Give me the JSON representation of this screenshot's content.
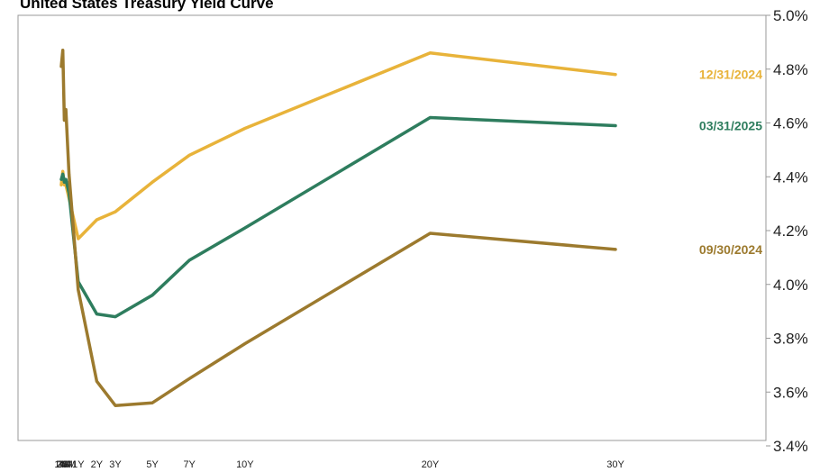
{
  "chart_data": {
    "type": "line",
    "title": "United States Treasury Yield Curve",
    "xlabel": "",
    "ylabel": "",
    "x": [
      "1M",
      "2M",
      "3M",
      "4M",
      "6M",
      "1Y",
      "2Y",
      "3Y",
      "5Y",
      "7Y",
      "10Y",
      "20Y",
      "30Y"
    ],
    "x_positions_months": [
      1,
      2,
      3,
      4,
      6,
      12,
      24,
      36,
      60,
      84,
      120,
      240,
      360
    ],
    "ylim": [
      3.4,
      5.0
    ],
    "yticks": [
      "5.0%",
      "4.8%",
      "4.6%",
      "4.4%",
      "4.2%",
      "4.0%",
      "3.8%",
      "3.6%",
      "3.4%"
    ],
    "ytick_values": [
      5.0,
      4.8,
      4.6,
      4.4,
      4.2,
      4.0,
      3.8,
      3.6,
      3.4
    ],
    "grid": false,
    "series": [
      {
        "name": "12/31/2024",
        "color": "#E8B33A",
        "values": [
          4.37,
          4.42,
          4.37,
          4.37,
          4.32,
          4.17,
          4.24,
          4.27,
          4.38,
          4.48,
          4.58,
          4.86,
          4.78
        ]
      },
      {
        "name": "03/31/2025",
        "color": "#2E7D5E",
        "values": [
          4.39,
          4.41,
          4.38,
          4.39,
          4.34,
          4.01,
          3.89,
          3.88,
          3.96,
          4.09,
          4.21,
          4.62,
          4.59
        ]
      },
      {
        "name": "09/30/2024",
        "color": "#9C7A2E",
        "values": [
          4.81,
          4.87,
          4.61,
          4.65,
          4.41,
          3.98,
          3.64,
          3.55,
          3.56,
          3.65,
          3.78,
          4.19,
          4.13
        ]
      }
    ]
  }
}
